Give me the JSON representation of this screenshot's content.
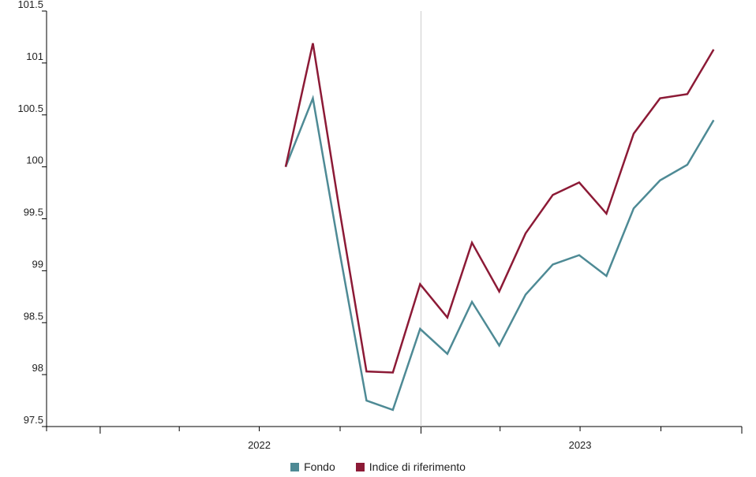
{
  "chart_data": {
    "type": "line",
    "title": "",
    "xlabel": "",
    "ylabel": "",
    "ylim": [
      97.5,
      101.5
    ],
    "yticks": [
      "97.5",
      "98",
      "98.5",
      "99",
      "99.5",
      "100",
      "100.5",
      "101",
      "101.5"
    ],
    "xticks": [
      {
        "label": "2022",
        "date": "2022-07-01"
      },
      {
        "label": "2023",
        "date": "2023-07-01"
      }
    ],
    "xlim": [
      "2021-11-01",
      "2024-01-01"
    ],
    "divider": "2023-01-01",
    "x": [
      "2022-07-31",
      "2022-08-31",
      "2022-09-30",
      "2022-10-31",
      "2022-11-30",
      "2022-12-31",
      "2023-01-31",
      "2023-02-28",
      "2023-03-31",
      "2023-04-30",
      "2023-05-31",
      "2023-06-30",
      "2023-07-31",
      "2023-08-31",
      "2023-09-30",
      "2023-10-31",
      "2023-11-30"
    ],
    "series": [
      {
        "name": "Fondo",
        "color": "#4e8a95",
        "values": [
          100.0,
          100.66,
          99.2,
          97.75,
          97.66,
          98.44,
          98.2,
          98.7,
          98.28,
          98.77,
          99.06,
          99.15,
          98.95,
          99.6,
          99.87,
          100.02,
          100.45
        ]
      },
      {
        "name": "Indice di riferimento",
        "color": "#8c1a36",
        "values": [
          100.0,
          101.19,
          99.6,
          98.03,
          98.02,
          98.87,
          98.55,
          99.27,
          98.8,
          99.36,
          99.73,
          99.85,
          99.55,
          100.32,
          100.66,
          100.7,
          101.13
        ]
      }
    ],
    "grid": false,
    "legend_position": "bottom-center"
  }
}
